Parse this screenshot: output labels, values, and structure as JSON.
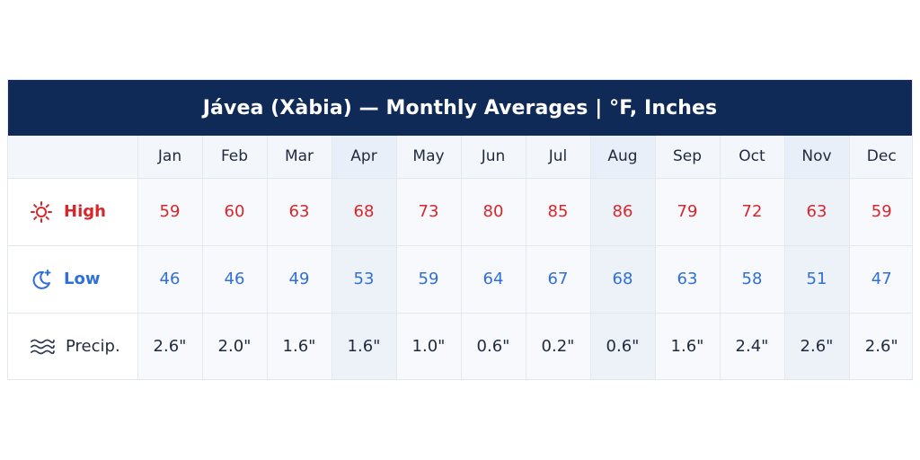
{
  "chart_data": {
    "type": "table",
    "title": "Jávea (Xàbia) — Monthly Averages | °F, Inches",
    "columns": [
      "Jan",
      "Feb",
      "Mar",
      "Apr",
      "May",
      "Jun",
      "Jul",
      "Aug",
      "Sep",
      "Oct",
      "Nov",
      "Dec"
    ],
    "rows": [
      {
        "label": "High",
        "icon": "sun-icon",
        "color": "#d9262a",
        "values": [
          "59",
          "60",
          "63",
          "68",
          "73",
          "80",
          "85",
          "86",
          "79",
          "72",
          "63",
          "59"
        ]
      },
      {
        "label": "Low",
        "icon": "moon-icon",
        "color": "#2f6fd6",
        "values": [
          "46",
          "46",
          "49",
          "53",
          "59",
          "64",
          "67",
          "68",
          "63",
          "58",
          "51",
          "47"
        ]
      },
      {
        "label": "Precip.",
        "icon": "waves-icon",
        "color": "#1f2a3d",
        "values": [
          "2.6\"",
          "2.0\"",
          "1.6\"",
          "1.6\"",
          "1.0\"",
          "0.6\"",
          "0.2\"",
          "0.6\"",
          "1.6\"",
          "2.4\"",
          "2.6\"",
          "2.6\""
        ]
      }
    ]
  },
  "colors": {
    "header_bg": "#0f2a57",
    "high": "#d9262a",
    "low": "#2f6fd6",
    "text": "#1f2a3d"
  }
}
